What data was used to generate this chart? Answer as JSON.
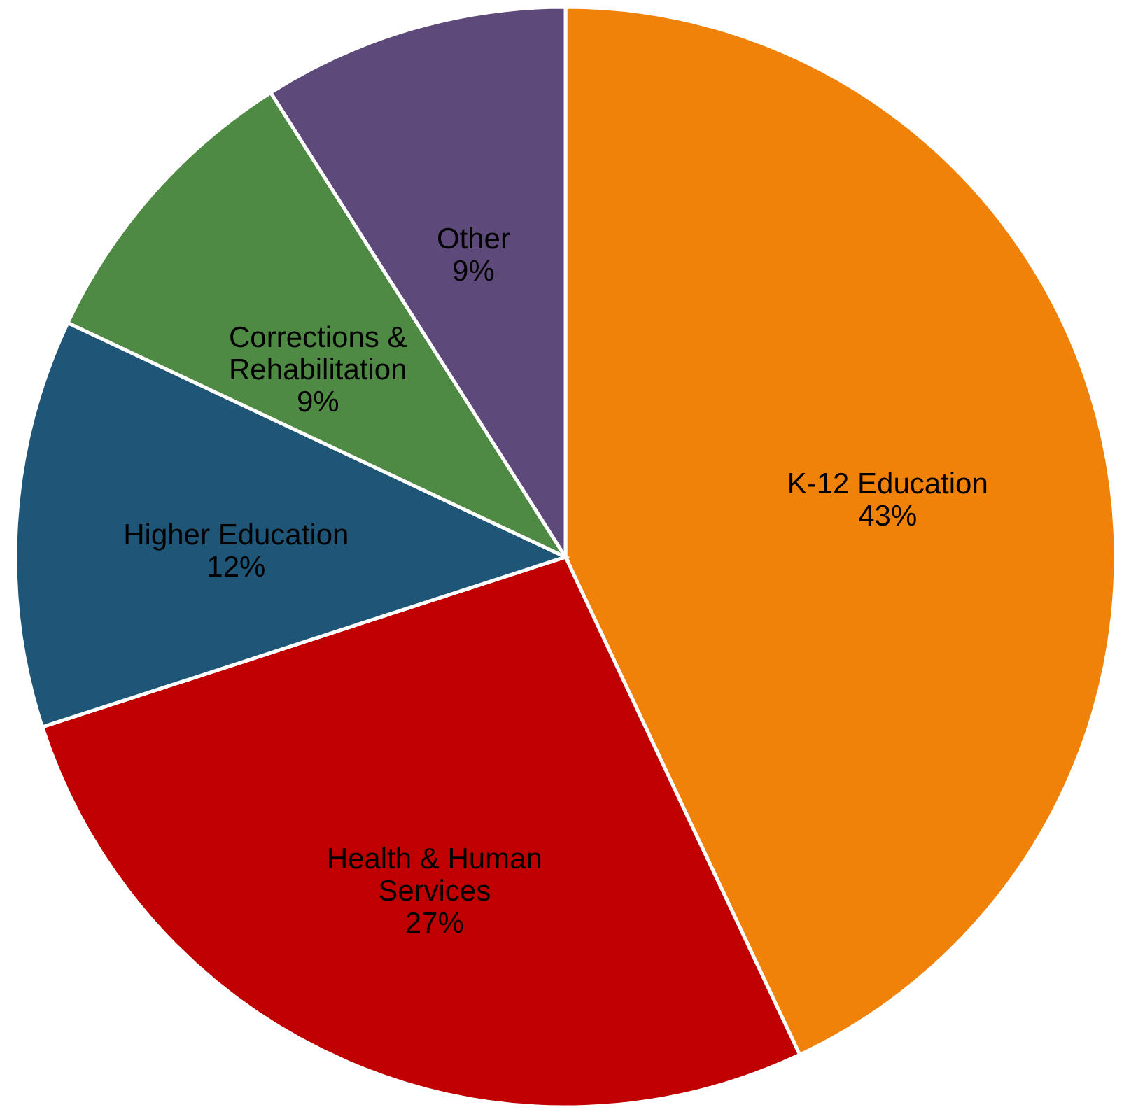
{
  "chart_data": {
    "type": "pie",
    "categories": [
      "K-12 Education",
      "Health & Human Services",
      "Higher Education",
      "Corrections & Rehabilitation",
      "Other"
    ],
    "values": [
      43,
      27,
      12,
      9,
      9
    ],
    "value_labels": [
      "43%",
      "27%",
      "12%",
      "9%",
      "9%"
    ],
    "colors": [
      "#f0820a",
      "#c00000",
      "#1f5577",
      "#4f8a44",
      "#5e4a7a"
    ]
  }
}
